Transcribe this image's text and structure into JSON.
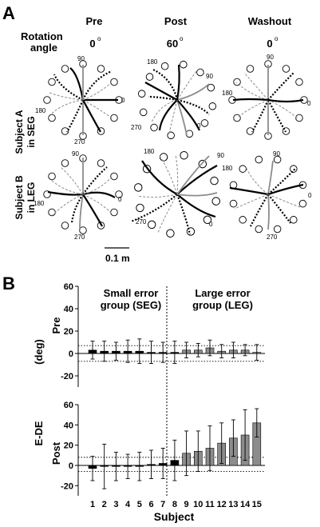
{
  "panel_a": {
    "letter": "A",
    "rotation_label_line1": "Rotation",
    "rotation_label_line2": "angle",
    "columns": [
      {
        "name": "Pre",
        "angle": "0",
        "rotation_deg": 0
      },
      {
        "name": "Post",
        "angle": "60",
        "rotation_deg": 60
      },
      {
        "name": "Washout",
        "angle": "0",
        "rotation_deg": 0
      }
    ],
    "rows": [
      {
        "line1": "Subject A",
        "line2": "in SEG"
      },
      {
        "line1": "Subject B",
        "line2": "in LEG"
      }
    ],
    "degree_sign": "o",
    "direction_labels": [
      "90",
      "180",
      "0",
      "270"
    ],
    "scale_bar_label": "0.1 m"
  },
  "panel_b": {
    "letter": "B",
    "group_labels": {
      "seg_line1": "Small error",
      "seg_line2": "group (SEG)",
      "leg_line1": "Large error",
      "leg_line2": "group (LEG)"
    },
    "y_axis_label_main": "E-DE",
    "y_axis_label_unit": "(deg)",
    "x_axis_label": "Subject",
    "sub_labels": [
      "Pre",
      "Post"
    ]
  },
  "chart_data": [
    {
      "type": "bar",
      "title": "Pre",
      "xlabel": "Subject",
      "ylabel": "E-DE (deg)",
      "ylim": [
        -30,
        60
      ],
      "yticks": [
        -20,
        0,
        20,
        40,
        60
      ],
      "categories": [
        "1",
        "2",
        "3",
        "4",
        "5",
        "6",
        "7",
        "8",
        "9",
        "10",
        "11",
        "12",
        "13",
        "14",
        "15"
      ],
      "groups": [
        {
          "name": "Small error group (SEG)",
          "subjects": [
            "1",
            "2",
            "3",
            "4",
            "5",
            "6",
            "7",
            "8"
          ],
          "color": "#000000"
        },
        {
          "name": "Large error group (LEG)",
          "subjects": [
            "9",
            "10",
            "11",
            "12",
            "13",
            "14",
            "15"
          ],
          "color": "#8c8c8c"
        }
      ],
      "values": [
        3,
        2,
        2,
        2,
        2,
        1,
        1,
        1,
        3,
        3,
        5,
        2,
        3,
        3,
        1
      ],
      "errors": [
        8,
        9,
        8,
        10,
        11,
        10,
        9,
        10,
        7,
        6,
        7,
        6,
        7,
        5,
        7
      ],
      "dotted_lines_y": [
        7,
        -7
      ]
    },
    {
      "type": "bar",
      "title": "Post",
      "xlabel": "Subject",
      "ylabel": "E-DE (deg)",
      "ylim": [
        -30,
        60
      ],
      "yticks": [
        -20,
        0,
        20,
        40,
        60
      ],
      "categories": [
        "1",
        "2",
        "3",
        "4",
        "5",
        "6",
        "7",
        "8",
        "9",
        "10",
        "11",
        "12",
        "13",
        "14",
        "15"
      ],
      "groups": [
        {
          "name": "Small error group (SEG)",
          "subjects": [
            "1",
            "2",
            "3",
            "4",
            "5",
            "6",
            "7",
            "8"
          ],
          "color": "#000000"
        },
        {
          "name": "Large error group (LEG)",
          "subjects": [
            "9",
            "10",
            "11",
            "12",
            "13",
            "14",
            "15"
          ],
          "color": "#8c8c8c"
        }
      ],
      "values": [
        -3,
        -1,
        -1,
        -1,
        -1,
        1,
        2,
        5,
        12,
        14,
        17,
        22,
        27,
        30,
        42
      ],
      "errors": [
        12,
        22,
        14,
        12,
        14,
        14,
        15,
        20,
        22,
        20,
        22,
        20,
        18,
        25,
        14
      ],
      "dotted_lines_y": [
        8,
        -6
      ]
    }
  ]
}
